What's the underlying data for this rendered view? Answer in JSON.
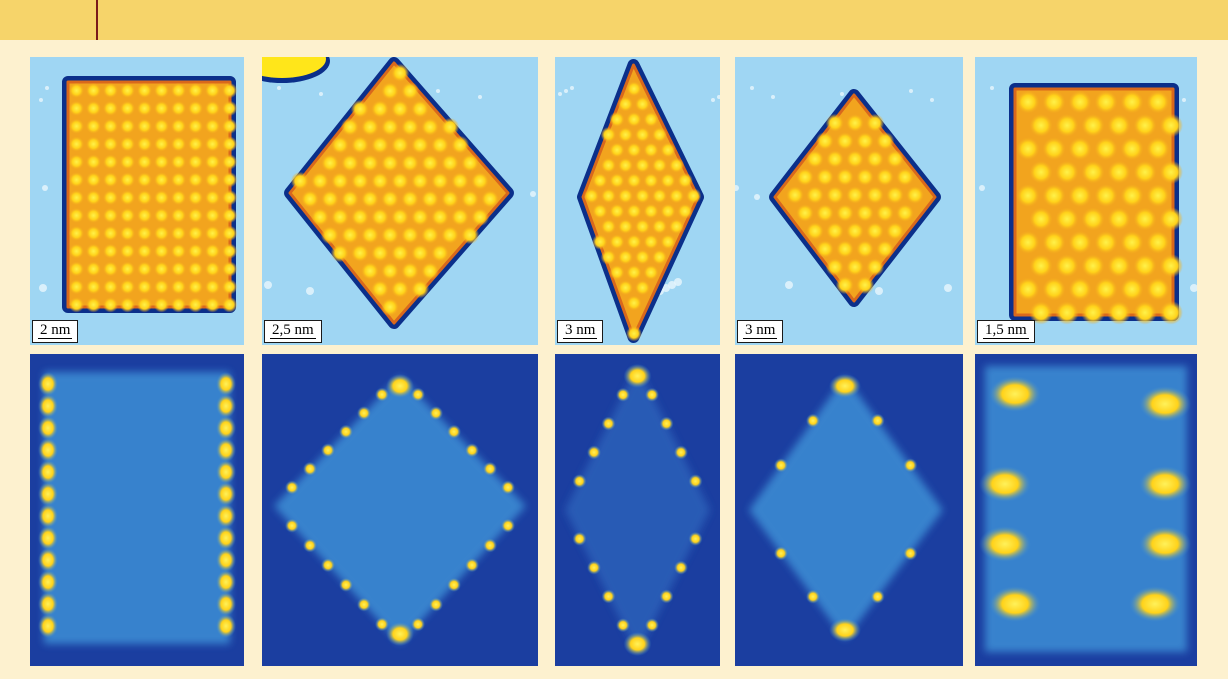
{
  "scale_bars": [
    "2 nm",
    "2,5 nm",
    "3 nm",
    "3 nm",
    "1,5 nm"
  ],
  "colors": {
    "top_bar": "#f6d46a",
    "frame": "#fdf1cf",
    "stm_background": "#9fd6f3",
    "stm_border": "#0b2f8a",
    "stm_island": "#f2a41e",
    "stm_atom": "#ffd21a",
    "map_background": "#1b3ea0",
    "map_mid": "#3e8fd6",
    "map_high": "#ffd21a"
  }
}
